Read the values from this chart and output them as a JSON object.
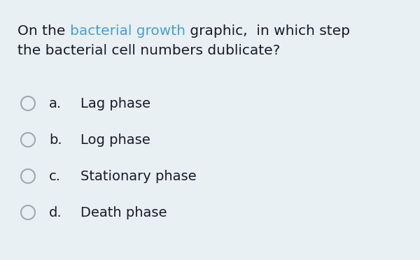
{
  "background_color": "#e8f0f3",
  "question_highlight": "bacterial growth",
  "highlight_color": "#4a9fd4",
  "text_color": "#1a1a2e",
  "circle_edge_color": "#a0a8b0",
  "options": [
    {
      "letter": "a.",
      "text": "Lag phase"
    },
    {
      "letter": "b.",
      "text": "Log phase"
    },
    {
      "letter": "c.",
      "text": "Stationary phase"
    },
    {
      "letter": "d.",
      "text": "Death phase"
    }
  ],
  "font_size_question": 14.5,
  "font_size_options": 14.0,
  "q_line1_parts": [
    "On the ",
    "bacterial growth",
    " graphic,  in which step"
  ],
  "q_line2": "the bacterial cell numbers dublicate?",
  "fig_width": 6.0,
  "fig_height": 3.72,
  "dpi": 100
}
